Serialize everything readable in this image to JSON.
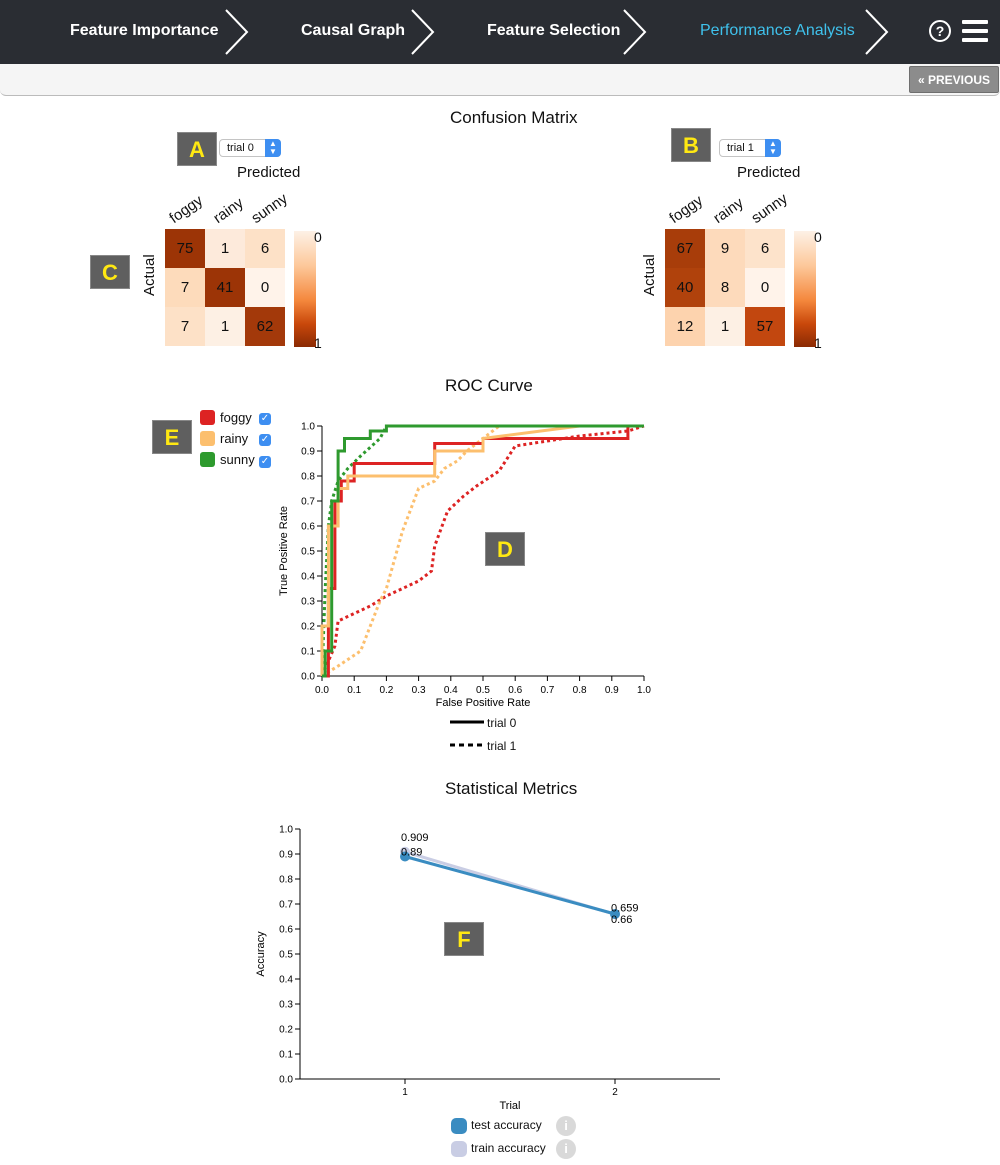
{
  "nav": {
    "steps": [
      {
        "label": "Feature Importance",
        "active": false
      },
      {
        "label": "Causal Graph",
        "active": false
      },
      {
        "label": "Feature Selection",
        "active": false
      },
      {
        "label": "Performance Analysis",
        "active": true
      }
    ],
    "help_icon": "?",
    "menu_icon": "hamburger-menu-icon"
  },
  "toolbar": {
    "previous_label": "« PREVIOUS"
  },
  "markers": {
    "a": "A",
    "b": "B",
    "c": "C",
    "d": "D",
    "e": "E",
    "f": "F"
  },
  "confusion": {
    "title": "Confusion Matrix",
    "left": {
      "selected_trial": "trial 0",
      "predicted_label": "Predicted",
      "actual_label": "Actual",
      "classes": [
        "foggy",
        "rainy",
        "sunny"
      ],
      "matrix": [
        [
          75,
          1,
          6
        ],
        [
          7,
          41,
          0
        ],
        [
          7,
          1,
          62
        ]
      ],
      "scale_min": "0",
      "scale_max": "1"
    },
    "right": {
      "selected_trial": "trial 1",
      "predicted_label": "Predicted",
      "actual_label": "Actual",
      "classes": [
        "foggy",
        "rainy",
        "sunny"
      ],
      "matrix": [
        [
          67,
          9,
          6
        ],
        [
          40,
          8,
          0
        ],
        [
          12,
          1,
          57
        ]
      ],
      "scale_min": "0",
      "scale_max": "1"
    }
  },
  "roc": {
    "title": "ROC Curve",
    "class_legend": [
      {
        "label": "foggy",
        "color": "#dd2323",
        "checked": true
      },
      {
        "label": "rainy",
        "color": "#fcbf6e",
        "checked": true
      },
      {
        "label": "sunny",
        "color": "#2e9a2e",
        "checked": true
      }
    ],
    "trial_legend": [
      {
        "label": "trial 0",
        "style": "solid"
      },
      {
        "label": "trial 1",
        "style": "dashed"
      }
    ]
  },
  "metrics": {
    "title": "Statistical Metrics",
    "legend": [
      {
        "label": "test accuracy",
        "color": "#3a8cc1",
        "info_icon": "i"
      },
      {
        "label": "train accuracy",
        "color": "#c9cde4",
        "info_icon": "i"
      }
    ]
  },
  "chart_data": [
    {
      "type": "line",
      "title": "ROC Curve",
      "xlabel": "False Positive Rate",
      "ylabel": "True Positive Rate",
      "xlim": [
        0,
        1
      ],
      "ylim": [
        0,
        1
      ],
      "xticks": [
        "0.0",
        "0.1",
        "0.2",
        "0.3",
        "0.4",
        "0.5",
        "0.6",
        "0.7",
        "0.8",
        "0.9",
        "1.0"
      ],
      "yticks": [
        "0.0",
        "0.1",
        "0.2",
        "0.3",
        "0.4",
        "0.5",
        "0.6",
        "0.7",
        "0.8",
        "0.9",
        "1.0"
      ],
      "series": [
        {
          "name": "foggy",
          "trial": "trial 0",
          "color": "#dd2323",
          "dash": false,
          "x": [
            0,
            0.02,
            0.02,
            0.04,
            0.04,
            0.06,
            0.06,
            0.1,
            0.1,
            0.35,
            0.35,
            0.5,
            0.5,
            0.95,
            0.95,
            1
          ],
          "y": [
            0,
            0,
            0.35,
            0.35,
            0.7,
            0.7,
            0.78,
            0.78,
            0.85,
            0.85,
            0.93,
            0.93,
            0.95,
            0.95,
            1,
            1
          ]
        },
        {
          "name": "rainy",
          "trial": "trial 0",
          "color": "#fcbf6e",
          "dash": false,
          "x": [
            0,
            0,
            0.02,
            0.02,
            0.05,
            0.05,
            0.08,
            0.08,
            0.35,
            0.35,
            0.5,
            0.5,
            0.8,
            1
          ],
          "y": [
            0,
            0.2,
            0.2,
            0.6,
            0.6,
            0.75,
            0.75,
            0.8,
            0.8,
            0.9,
            0.9,
            0.95,
            1,
            1
          ]
        },
        {
          "name": "sunny",
          "trial": "trial 0",
          "color": "#2e9a2e",
          "dash": false,
          "x": [
            0,
            0.01,
            0.01,
            0.03,
            0.03,
            0.05,
            0.05,
            0.07,
            0.07,
            0.15,
            0.15,
            0.2,
            0.2,
            1
          ],
          "y": [
            0,
            0,
            0.1,
            0.1,
            0.7,
            0.7,
            0.9,
            0.9,
            0.95,
            0.95,
            0.98,
            0.98,
            1,
            1
          ]
        },
        {
          "name": "foggy",
          "trial": "trial 1",
          "color": "#dd2323",
          "dash": true,
          "x": [
            0,
            0.04,
            0.05,
            0.1,
            0.15,
            0.2,
            0.3,
            0.34,
            0.35,
            0.39,
            0.44,
            0.48,
            0.55,
            0.58,
            0.6,
            0.8,
            0.95,
            1
          ],
          "y": [
            0,
            0.12,
            0.22,
            0.25,
            0.28,
            0.32,
            0.38,
            0.42,
            0.52,
            0.66,
            0.72,
            0.76,
            0.82,
            0.88,
            0.92,
            0.96,
            0.98,
            1
          ]
        },
        {
          "name": "rainy",
          "trial": "trial 1",
          "color": "#fcbf6e",
          "dash": true,
          "x": [
            0,
            0.05,
            0.12,
            0.18,
            0.2,
            0.25,
            0.3,
            0.35,
            0.38,
            0.42,
            0.45,
            0.5,
            0.55,
            1
          ],
          "y": [
            0,
            0.04,
            0.1,
            0.3,
            0.35,
            0.58,
            0.75,
            0.78,
            0.83,
            0.86,
            0.9,
            0.95,
            1,
            1
          ]
        },
        {
          "name": "sunny",
          "trial": "trial 1",
          "color": "#2e9a2e",
          "dash": true,
          "x": [
            0,
            0.01,
            0.02,
            0.03,
            0.05,
            0.08,
            0.12,
            0.18,
            0.2,
            1
          ],
          "y": [
            0,
            0.35,
            0.6,
            0.7,
            0.78,
            0.83,
            0.88,
            0.95,
            1,
            1
          ]
        }
      ]
    },
    {
      "type": "line",
      "title": "Statistical Metrics",
      "xlabel": "Trial",
      "ylabel": "Accuracy",
      "x": [
        1,
        2
      ],
      "xlim": [
        0.5,
        2.5
      ],
      "ylim": [
        0,
        1
      ],
      "yticks": [
        "0.0",
        "0.1",
        "0.2",
        "0.3",
        "0.4",
        "0.5",
        "0.6",
        "0.7",
        "0.8",
        "0.9",
        "1.0"
      ],
      "series": [
        {
          "name": "test accuracy",
          "color": "#3a8cc1",
          "values": [
            0.89,
            0.66
          ],
          "labels": [
            "0.89",
            "0.66"
          ]
        },
        {
          "name": "train accuracy",
          "color": "#c9cde4",
          "values": [
            0.909,
            0.659
          ],
          "labels": [
            "0.909",
            "0.659"
          ]
        }
      ]
    }
  ]
}
